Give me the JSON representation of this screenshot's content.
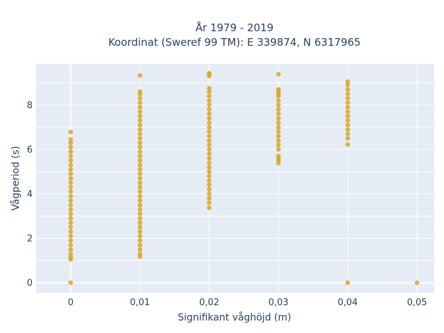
{
  "chart_data": {
    "type": "scatter",
    "title": "År 1979 - 2019",
    "subtitle": "Koordinat (Sweref 99 TM): E 339874, N 6317965",
    "xlabel": "Signifikant våghöjd (m)",
    "ylabel": "Vågperiod (s)",
    "xlim": [
      -0.005,
      0.0525
    ],
    "ylim": [
      -0.45,
      9.85
    ],
    "x_ticks": [
      0,
      0.01,
      0.02,
      0.03,
      0.04,
      0.05
    ],
    "x_tick_labels": [
      "0",
      "0,01",
      "0,02",
      "0,03",
      "0,04",
      "0,05"
    ],
    "y_ticks": [
      0,
      2,
      4,
      6,
      8
    ],
    "y_tick_labels": [
      "0",
      "2",
      "4",
      "6",
      "8"
    ],
    "grid": true,
    "marker_color": "#DAA520",
    "background_color": "#E5ECF6",
    "series": [
      {
        "x": 0,
        "y": [
          0.0,
          1.05,
          1.15,
          1.3,
          1.5,
          1.7,
          1.9,
          2.1,
          2.3,
          2.5,
          2.7,
          2.9,
          3.1,
          3.3,
          3.5,
          3.7,
          3.9,
          4.1,
          4.3,
          4.5,
          4.7,
          4.9,
          5.1,
          5.3,
          5.5,
          5.7,
          5.9,
          6.1,
          6.3,
          6.45,
          6.78
        ]
      },
      {
        "x": 0.01,
        "y": [
          1.17,
          1.3,
          1.5,
          1.7,
          1.9,
          2.1,
          2.3,
          2.5,
          2.7,
          2.9,
          3.1,
          3.3,
          3.5,
          3.7,
          3.9,
          4.1,
          4.3,
          4.5,
          4.7,
          4.9,
          5.1,
          5.3,
          5.5,
          5.7,
          5.9,
          6.1,
          6.3,
          6.5,
          6.7,
          6.9,
          7.1,
          7.3,
          7.5,
          7.7,
          7.9,
          8.1,
          8.3,
          8.5,
          8.6,
          9.33
        ]
      },
      {
        "x": 0.02,
        "y": [
          3.37,
          3.6,
          3.8,
          4.0,
          4.2,
          4.4,
          4.6,
          4.8,
          5.0,
          5.2,
          5.4,
          5.6,
          5.8,
          6.0,
          6.2,
          6.4,
          6.6,
          6.8,
          7.0,
          7.2,
          7.4,
          7.6,
          7.8,
          8.0,
          8.2,
          8.4,
          8.6,
          8.75,
          9.3,
          9.37,
          9.43
        ]
      },
      {
        "x": 0.03,
        "y": [
          5.38,
          5.5,
          5.6,
          5.7,
          6.0,
          6.2,
          6.4,
          6.6,
          6.8,
          7.0,
          7.2,
          7.4,
          7.6,
          7.8,
          8.0,
          8.2,
          8.4,
          8.5,
          8.6,
          8.7,
          9.38
        ]
      },
      {
        "x": 0.04,
        "y": [
          0.0,
          6.22,
          6.5,
          6.7,
          6.9,
          7.1,
          7.3,
          7.5,
          7.7,
          7.9,
          8.1,
          8.3,
          8.5,
          8.7,
          8.9,
          9.05
        ]
      },
      {
        "x": 0.05,
        "y": [
          0.0
        ]
      }
    ]
  }
}
